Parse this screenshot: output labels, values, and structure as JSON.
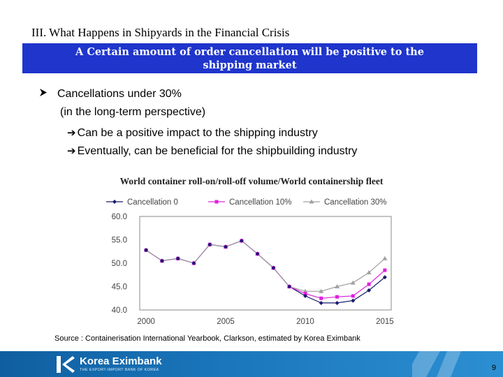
{
  "slide": {
    "section_title": "III. What Happens in Shipyards in the Financial Crisis",
    "banner_line1": "A  Certain amount of order cancellation will be positive to the",
    "banner_line2": "shipping market",
    "bullet": "Cancellations under 30%",
    "bullet_sub": "(in the long-term perspective)",
    "arrow_item_1": "Can be a positive impact to the shipping industry",
    "arrow_item_2": "Eventually, can be beneficial for the shipbuilding industry",
    "chart_title": "World container roll-on/roll-off volume/World containership fleet",
    "source": "Source : Containerisation International Yearbook, Clarkson, estimated by Korea Eximbank",
    "page_number": "9"
  },
  "footer": {
    "logo_text": "Korea Eximbank",
    "logo_sub": "THE EXPORT-IMPORT BANK OF KOREA"
  },
  "colors": {
    "banner": "#1f35cc",
    "series_0": "#1a1a6e",
    "series_10": "#e020e0",
    "series_30": "#a0a0a0"
  },
  "icons": [
    "arrow-bullet-icon",
    "right-arrow-icon",
    "korea-eximbank-logo-icon"
  ],
  "chart_data": {
    "type": "line",
    "x": [
      2000,
      2001,
      2002,
      2003,
      2004,
      2005,
      2006,
      2007,
      2008,
      2009,
      2010,
      2011,
      2012,
      2013,
      2014,
      2015
    ],
    "x_tick_labels": [
      "2000",
      "2005",
      "2010",
      "2015"
    ],
    "y_tick_labels": [
      "40.0",
      "45.0",
      "50.0",
      "55.0",
      "60.0"
    ],
    "ylim": [
      40,
      60
    ],
    "xlim": [
      1999.6,
      2015.4
    ],
    "grid": false,
    "legend": "top",
    "series": [
      {
        "name": "Cancellation 0",
        "marker": "diamond",
        "color": "#1a1a6e",
        "values": [
          52.8,
          50.5,
          51.0,
          50.0,
          54.0,
          53.5,
          54.8,
          52.0,
          49.0,
          45.0,
          43.0,
          41.5,
          41.5,
          42.0,
          44.2,
          47.0
        ]
      },
      {
        "name": "Cancellation 10%",
        "marker": "square",
        "color": "#e020e0",
        "values": [
          52.8,
          50.5,
          51.0,
          50.0,
          54.0,
          53.5,
          54.8,
          52.0,
          49.0,
          45.0,
          43.5,
          42.5,
          42.8,
          43.0,
          45.5,
          48.5
        ]
      },
      {
        "name": "Cancellation 30%",
        "marker": "triangle",
        "color": "#a0a0a0",
        "values": [
          52.8,
          50.5,
          51.0,
          50.0,
          54.0,
          53.5,
          54.8,
          52.0,
          49.0,
          45.0,
          44.0,
          44.0,
          45.0,
          45.8,
          48.0,
          51.0
        ]
      }
    ]
  }
}
